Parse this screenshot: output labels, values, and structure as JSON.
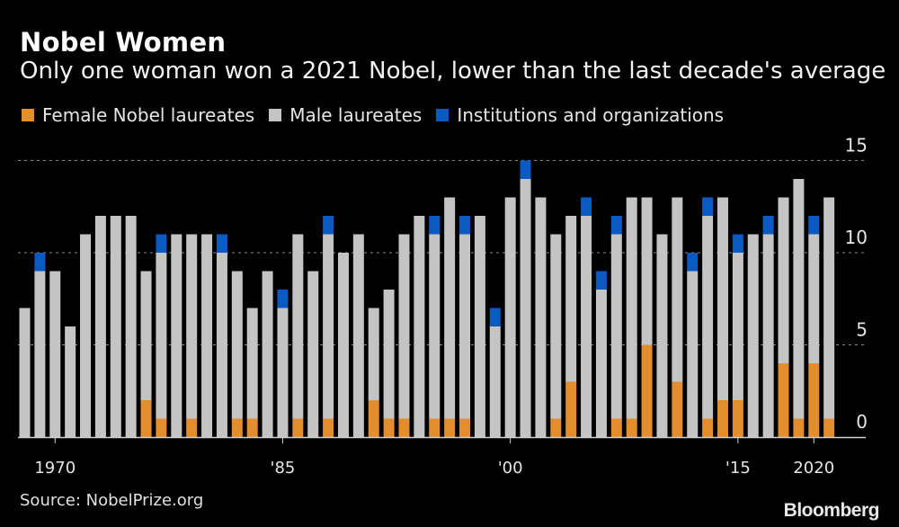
{
  "title": "Nobel Women",
  "subtitle": "Only one woman won a 2021 Nobel, lower than the last decade's average",
  "source": "Source: NobelPrize.org",
  "logo": "Bloomberg",
  "colors": {
    "female": "#e38d2c",
    "male": "#c4c4c4",
    "institutions": "#0b5ac2",
    "background": "#000000"
  },
  "chart_data": {
    "type": "bar",
    "stacked": true,
    "legend": [
      "Female Nobel laureates",
      "Male laureates",
      "Institutions and organizations"
    ],
    "legend_placement": "top-left",
    "x": [
      1968,
      1969,
      1970,
      1971,
      1972,
      1973,
      1974,
      1975,
      1976,
      1977,
      1978,
      1979,
      1980,
      1981,
      1982,
      1983,
      1984,
      1985,
      1986,
      1987,
      1988,
      1989,
      1990,
      1991,
      1992,
      1993,
      1994,
      1995,
      1996,
      1997,
      1998,
      1999,
      2000,
      2001,
      2002,
      2003,
      2004,
      2005,
      2006,
      2007,
      2008,
      2009,
      2010,
      2011,
      2012,
      2013,
      2014,
      2015,
      2016,
      2017,
      2018,
      2019,
      2020,
      2021
    ],
    "x_tick_values": [
      1970,
      1985,
      2000,
      2015,
      2020
    ],
    "x_tick_labels": [
      "1970",
      "'85",
      "'00",
      "'15",
      "2020"
    ],
    "y_ticks": [
      0,
      5,
      10,
      15
    ],
    "ylim": [
      0,
      15
    ],
    "grid": true,
    "series": [
      {
        "name": "Female Nobel laureates",
        "values": [
          0,
          0,
          0,
          0,
          0,
          0,
          0,
          0,
          2,
          1,
          0,
          1,
          0,
          0,
          1,
          1,
          0,
          0,
          1,
          0,
          1,
          0,
          0,
          2,
          1,
          1,
          0,
          1,
          1,
          1,
          0,
          0,
          0,
          0,
          0,
          1,
          3,
          0,
          0,
          1,
          1,
          5,
          0,
          3,
          0,
          1,
          2,
          2,
          0,
          0,
          4,
          1,
          4,
          1
        ]
      },
      {
        "name": "Male laureates",
        "values": [
          7,
          9,
          9,
          6,
          11,
          12,
          12,
          12,
          7,
          9,
          11,
          10,
          11,
          10,
          8,
          6,
          9,
          7,
          10,
          9,
          10,
          10,
          11,
          5,
          7,
          10,
          12,
          10,
          12,
          10,
          12,
          6,
          13,
          14,
          13,
          10,
          9,
          12,
          8,
          10,
          12,
          8,
          11,
          10,
          9,
          11,
          11,
          8,
          11,
          11,
          9,
          13,
          7,
          12
        ]
      },
      {
        "name": "Institutions and organizations",
        "values": [
          0,
          1,
          0,
          0,
          0,
          0,
          0,
          0,
          0,
          1,
          0,
          0,
          0,
          1,
          0,
          0,
          0,
          1,
          0,
          0,
          1,
          0,
          0,
          0,
          0,
          0,
          0,
          1,
          0,
          1,
          0,
          1,
          0,
          1,
          0,
          0,
          0,
          1,
          1,
          1,
          0,
          0,
          0,
          0,
          1,
          1,
          0,
          1,
          0,
          1,
          0,
          0,
          1,
          0
        ]
      }
    ]
  }
}
